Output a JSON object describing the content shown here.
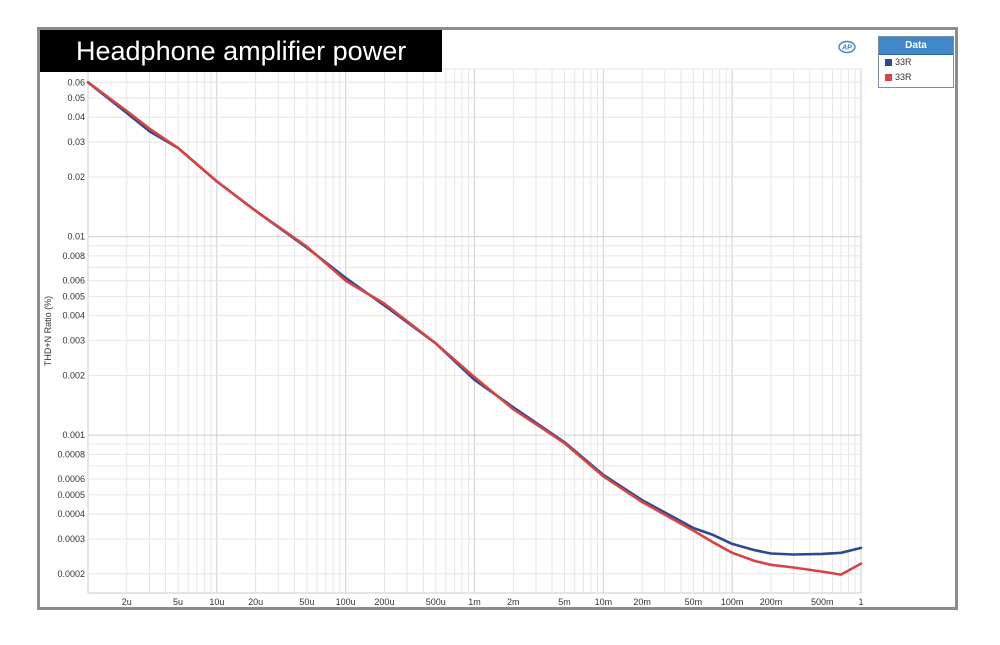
{
  "header": {
    "title": "Headphone amplifier power"
  },
  "colors": {
    "blue_series": "#2b4a93",
    "red_series": "#d64545",
    "legend_header": "#3f87c9"
  },
  "legend": {
    "title": "Data",
    "items": [
      {
        "label": "33R",
        "color": "#2b4a93"
      },
      {
        "label": "33R",
        "color": "#d64545"
      }
    ]
  },
  "chart_data": {
    "type": "line",
    "title": "Headphone amplifier power",
    "xlabel": "",
    "ylabel": "THD+N Ratio (%)",
    "x_scale": "log",
    "y_scale": "log",
    "xlim": [
      1e-06,
      1
    ],
    "ylim": [
      0.00016,
      0.07
    ],
    "grid": true,
    "legend_position": "right",
    "x_ticks": [
      {
        "v": 2e-06,
        "label": "2u"
      },
      {
        "v": 5e-06,
        "label": "5u"
      },
      {
        "v": 1e-05,
        "label": "10u"
      },
      {
        "v": 2e-05,
        "label": "20u"
      },
      {
        "v": 5e-05,
        "label": "50u"
      },
      {
        "v": 0.0001,
        "label": "100u"
      },
      {
        "v": 0.0002,
        "label": "200u"
      },
      {
        "v": 0.0005,
        "label": "500u"
      },
      {
        "v": 0.001,
        "label": "1m"
      },
      {
        "v": 0.002,
        "label": "2m"
      },
      {
        "v": 0.005,
        "label": "5m"
      },
      {
        "v": 0.01,
        "label": "10m"
      },
      {
        "v": 0.02,
        "label": "20m"
      },
      {
        "v": 0.05,
        "label": "50m"
      },
      {
        "v": 0.1,
        "label": "100m"
      },
      {
        "v": 0.2,
        "label": "200m"
      },
      {
        "v": 0.5,
        "label": "500m"
      },
      {
        "v": 1,
        "label": "1"
      }
    ],
    "y_ticks": [
      {
        "v": 0.06,
        "label": "0.06"
      },
      {
        "v": 0.05,
        "label": "0.05"
      },
      {
        "v": 0.04,
        "label": "0.04"
      },
      {
        "v": 0.03,
        "label": "0.03"
      },
      {
        "v": 0.02,
        "label": "0.02"
      },
      {
        "v": 0.01,
        "label": "0.01"
      },
      {
        "v": 0.008,
        "label": "0.008"
      },
      {
        "v": 0.006,
        "label": "0.006"
      },
      {
        "v": 0.005,
        "label": "0.005"
      },
      {
        "v": 0.004,
        "label": "0.004"
      },
      {
        "v": 0.003,
        "label": "0.003"
      },
      {
        "v": 0.002,
        "label": "0.002"
      },
      {
        "v": 0.001,
        "label": "0.001"
      },
      {
        "v": 0.0008,
        "label": "0.0008"
      },
      {
        "v": 0.0006,
        "label": "0.0006"
      },
      {
        "v": 0.0005,
        "label": "0.0005"
      },
      {
        "v": 0.0004,
        "label": "0.0004"
      },
      {
        "v": 0.0003,
        "label": "0.0003"
      },
      {
        "v": 0.0002,
        "label": "0.0002"
      }
    ],
    "series": [
      {
        "name": "33R",
        "color": "#2b4a93",
        "x": [
          1e-06,
          2e-06,
          3e-06,
          5e-06,
          1e-05,
          2e-05,
          5e-05,
          0.0001,
          0.0002,
          0.0005,
          0.001,
          0.002,
          0.005,
          0.01,
          0.02,
          0.05,
          0.07,
          0.1,
          0.15,
          0.2,
          0.3,
          0.5,
          0.7,
          1
        ],
        "y": [
          0.06,
          0.042,
          0.034,
          0.028,
          0.019,
          0.0135,
          0.0088,
          0.0062,
          0.0045,
          0.0029,
          0.0019,
          0.00138,
          0.00092,
          0.00063,
          0.00047,
          0.00034,
          0.000315,
          0.000283,
          0.000263,
          0.000253,
          0.00025,
          0.000252,
          0.000255,
          0.00027
        ]
      },
      {
        "name": "33R",
        "color": "#d64545",
        "x": [
          1e-06,
          2e-06,
          3e-06,
          5e-06,
          1e-05,
          2e-05,
          5e-05,
          0.0001,
          0.0002,
          0.0005,
          0.001,
          0.002,
          0.005,
          0.01,
          0.02,
          0.05,
          0.07,
          0.1,
          0.15,
          0.2,
          0.3,
          0.5,
          0.7,
          1
        ],
        "y": [
          0.06,
          0.043,
          0.035,
          0.028,
          0.019,
          0.0135,
          0.0089,
          0.006,
          0.0046,
          0.0029,
          0.00196,
          0.00135,
          0.00091,
          0.00062,
          0.00046,
          0.00033,
          0.00029,
          0.000255,
          0.000232,
          0.000222,
          0.000215,
          0.000205,
          0.000198,
          0.000225
        ]
      }
    ]
  }
}
